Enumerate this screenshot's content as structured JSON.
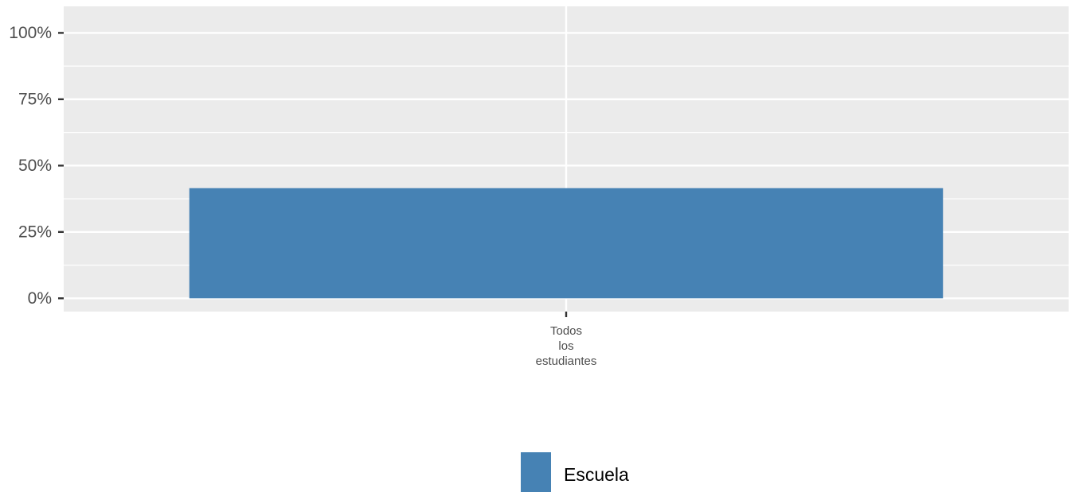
{
  "chart_data": {
    "type": "bar",
    "categories": [
      "Todos los estudiantes"
    ],
    "category_label_lines": [
      [
        "Todos",
        "los",
        "estudiantes"
      ]
    ],
    "series": [
      {
        "name": "Escuela",
        "values": [
          0.415
        ],
        "color": "#4682B4"
      }
    ],
    "ylim": [
      -0.05,
      1.1
    ],
    "yticks": [
      0,
      0.25,
      0.5,
      0.75,
      1.0
    ],
    "ytick_labels": [
      "0%",
      "25%",
      "50%",
      "75%",
      "100%"
    ],
    "xlabel": "",
    "ylabel": "",
    "grid": true,
    "legend_position": "bottom",
    "panel_background": "#EBEBEB"
  }
}
